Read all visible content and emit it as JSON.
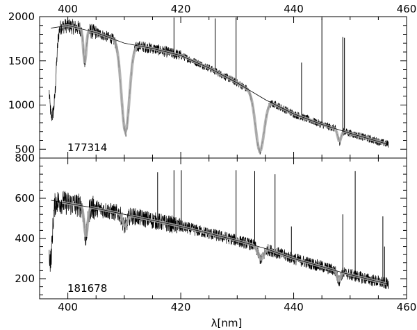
{
  "chart_data": [
    {
      "type": "line",
      "title": "",
      "label": "177314",
      "xlabel": "",
      "ylabel": "",
      "xlim": [
        395,
        460
      ],
      "ylim": [
        400,
        2000
      ],
      "x_ticks": [
        400,
        420,
        440,
        460
      ],
      "y_ticks": [
        500,
        1000,
        1500,
        2000
      ],
      "continuum": {
        "x": [
          397,
          400,
          405,
          410,
          415,
          420,
          425,
          430,
          435,
          440,
          445,
          450,
          456.5
        ],
        "y": [
          1870,
          1900,
          1820,
          1700,
          1640,
          1560,
          1420,
          1250,
          1060,
          900,
          780,
          680,
          560
        ]
      },
      "absorption_lines": [
        {
          "x": 397.0,
          "depth": 900,
          "width": 0.45
        },
        {
          "x": 397.7,
          "depth": 500,
          "width": 0.35
        },
        {
          "x": 403.0,
          "depth": 380,
          "width": 0.25
        },
        {
          "x": 410.2,
          "depth": 1000,
          "width": 0.7
        },
        {
          "x": 434.0,
          "depth": 620,
          "width": 0.75
        },
        {
          "x": 448.1,
          "depth": 130,
          "width": 0.3
        }
      ],
      "emission_spikes": [
        {
          "x": 418.8,
          "y": 1990
        },
        {
          "x": 426.1,
          "y": 1980
        },
        {
          "x": 429.8,
          "y": 1990
        },
        {
          "x": 441.4,
          "y": 1480
        },
        {
          "x": 445.0,
          "y": 1980
        },
        {
          "x": 448.7,
          "y": 1770
        },
        {
          "x": 449.0,
          "y": 1760
        }
      ],
      "noise": 55
    },
    {
      "type": "line",
      "title": "",
      "label": "181678",
      "xlabel": "λ[nm]",
      "ylabel": "",
      "xlim": [
        395,
        460
      ],
      "ylim": [
        100,
        800
      ],
      "x_ticks": [
        400,
        420,
        440,
        460
      ],
      "y_ticks": [
        200,
        400,
        600,
        800
      ],
      "continuum": {
        "x": [
          397,
          400,
          405,
          410,
          415,
          420,
          425,
          430,
          435,
          440,
          445,
          450,
          456.5
        ],
        "y": [
          590,
          575,
          550,
          520,
          490,
          460,
          425,
          390,
          350,
          300,
          260,
          220,
          175
        ]
      },
      "absorption_lines": [
        {
          "x": 396.9,
          "depth": 300,
          "width": 0.35
        },
        {
          "x": 403.2,
          "depth": 150,
          "width": 0.3
        },
        {
          "x": 410.1,
          "depth": 60,
          "width": 0.4
        },
        {
          "x": 434.2,
          "depth": 60,
          "width": 0.5
        },
        {
          "x": 448.0,
          "depth": 45,
          "width": 0.3
        }
      ],
      "emission_spikes": [
        {
          "x": 415.9,
          "y": 730
        },
        {
          "x": 418.8,
          "y": 740
        },
        {
          "x": 420.1,
          "y": 740
        },
        {
          "x": 429.8,
          "y": 740
        },
        {
          "x": 433.1,
          "y": 735
        },
        {
          "x": 436.7,
          "y": 720
        },
        {
          "x": 439.6,
          "y": 460
        },
        {
          "x": 448.7,
          "y": 520
        },
        {
          "x": 450.9,
          "y": 735
        },
        {
          "x": 455.8,
          "y": 510
        },
        {
          "x": 456.1,
          "y": 360
        }
      ],
      "noise": 38
    }
  ],
  "colors": {
    "spectrum": "#000000",
    "model": "#aaaaaa",
    "continuum": "#000000",
    "frame": "#000000"
  }
}
